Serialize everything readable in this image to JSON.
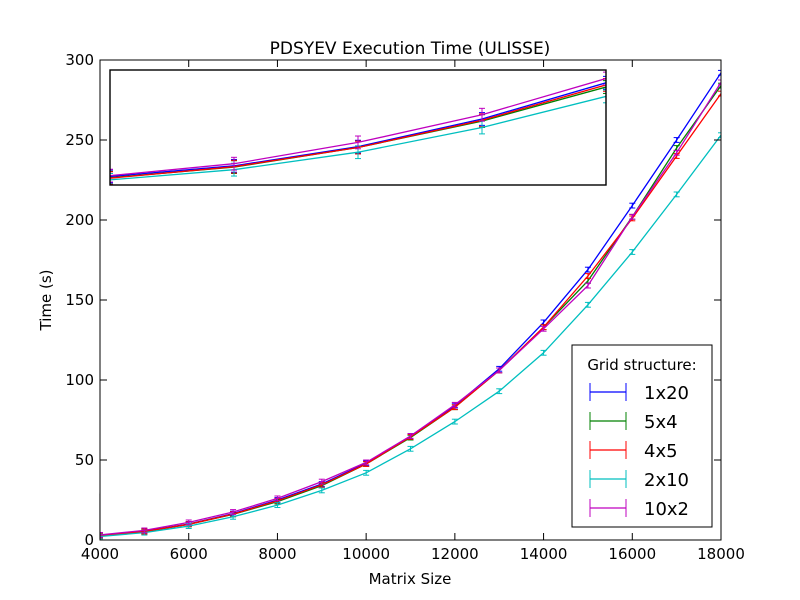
{
  "chart_data": {
    "type": "line",
    "title": "PDSYEV Execution Time (ULISSE)",
    "xlabel": "Matrix Size",
    "ylabel": "Time (s)",
    "xlim": [
      4000,
      18000
    ],
    "ylim": [
      0,
      300
    ],
    "xticks": [
      4000,
      6000,
      8000,
      10000,
      12000,
      14000,
      16000,
      18000
    ],
    "yticks": [
      0,
      50,
      100,
      150,
      200,
      250,
      300
    ],
    "grid": false,
    "legend": {
      "title": "Grid structure:",
      "placement": "lower-right"
    },
    "x": [
      4000,
      5000,
      6000,
      7000,
      8000,
      9000,
      10000,
      11000,
      12000,
      13000,
      14000,
      15000,
      16000,
      17000,
      18000
    ],
    "series": [
      {
        "name": "1x20",
        "color": "#0000ff",
        "error": 1.5,
        "values": [
          3,
          5.5,
          10,
          16.5,
          25,
          35,
          48,
          65,
          84,
          107,
          136,
          169,
          209,
          250,
          292
        ]
      },
      {
        "name": "5x4",
        "color": "#008000",
        "error": 1.5,
        "values": [
          2.7,
          5.2,
          9.8,
          16,
          24,
          34,
          47.5,
          64,
          83,
          106,
          133,
          162,
          202,
          245,
          284
        ]
      },
      {
        "name": "4x5",
        "color": "#ff0000",
        "error": 1.5,
        "values": [
          2.6,
          5.3,
          9.8,
          16.2,
          24.5,
          34.5,
          47.5,
          64.5,
          83,
          106,
          133,
          165,
          201,
          240,
          279
        ]
      },
      {
        "name": "2x10",
        "color": "#00bfbf",
        "error": 1.5,
        "values": [
          2.2,
          4.6,
          8.7,
          14.5,
          21.8,
          31,
          42,
          57,
          74,
          93,
          117,
          147,
          180,
          216,
          253
        ]
      },
      {
        "name": "10x2",
        "color": "#bf00bf",
        "error": 1.5,
        "values": [
          3.2,
          6,
          11,
          17.5,
          26,
          36.5,
          48.5,
          65,
          84.5,
          106,
          132,
          159,
          202,
          242,
          286
        ]
      }
    ],
    "inset": {
      "xlim": [
        4000,
        8000
      ],
      "ylim": [
        1,
        28
      ]
    }
  }
}
